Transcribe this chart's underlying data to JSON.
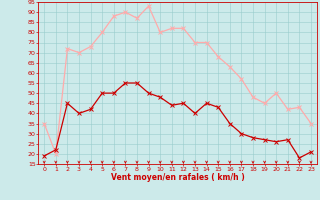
{
  "x": [
    0,
    1,
    2,
    3,
    4,
    5,
    6,
    7,
    8,
    9,
    10,
    11,
    12,
    13,
    14,
    15,
    16,
    17,
    18,
    19,
    20,
    21,
    22,
    23
  ],
  "wind_avg": [
    19,
    22,
    45,
    40,
    42,
    50,
    50,
    55,
    55,
    50,
    48,
    44,
    45,
    40,
    45,
    43,
    35,
    30,
    28,
    27,
    26,
    27,
    18,
    21
  ],
  "wind_gust": [
    35,
    20,
    72,
    70,
    73,
    80,
    88,
    90,
    87,
    93,
    80,
    82,
    82,
    75,
    75,
    68,
    63,
    57,
    48,
    45,
    50,
    42,
    43,
    35
  ],
  "avg_color": "#cc0000",
  "gust_color": "#ffaaaa",
  "bg_color": "#cceaea",
  "grid_color": "#99cccc",
  "xlabel": "Vent moyen/en rafales ( km/h )",
  "xlabel_color": "#cc0000",
  "ylim": [
    15,
    95
  ],
  "yticks": [
    15,
    20,
    25,
    30,
    35,
    40,
    45,
    50,
    55,
    60,
    65,
    70,
    75,
    80,
    85,
    90,
    95
  ],
  "xticks": [
    0,
    1,
    2,
    3,
    4,
    5,
    6,
    7,
    8,
    9,
    10,
    11,
    12,
    13,
    14,
    15,
    16,
    17,
    18,
    19,
    20,
    21,
    22,
    23
  ],
  "marker_size": 2.5,
  "line_width": 0.9
}
